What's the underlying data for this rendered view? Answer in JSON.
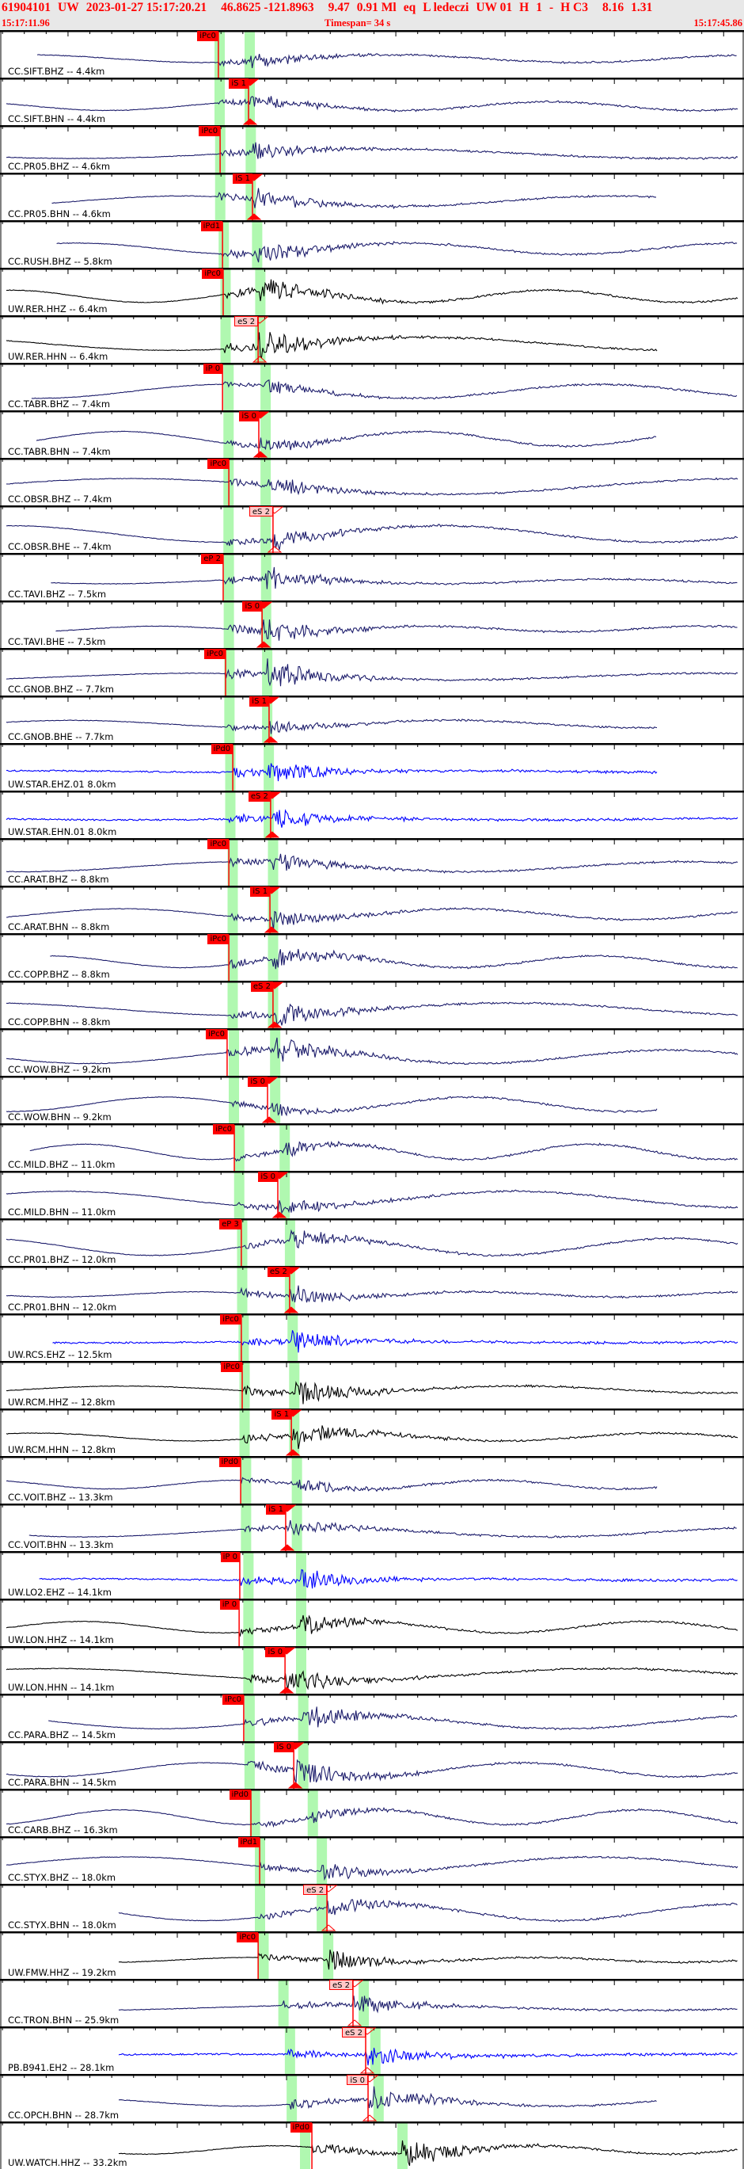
{
  "header": {
    "title_fields": [
      "61904101",
      "UW",
      "2023-01-27 15:17:20.21",
      "",
      "46.8625 -121.8963",
      "",
      "9.47",
      "0.91 Ml",
      "eq",
      "L ledeczi",
      "UW 01",
      "H",
      "1",
      "-",
      "H C3",
      "",
      "8.16",
      "1.31"
    ],
    "start_time": "15:17:11.96",
    "timespan": "Timespan=  34 s",
    "end_time": "15:17:45.86"
  },
  "colors": {
    "header_bg": "#e8e8e8",
    "header_text": "#ff0000",
    "trace_bh": "#1c1c6b",
    "trace_hh": "#000000",
    "trace_eh": "#0000ff",
    "pick": "#ff0000",
    "pick_weak_bg": "#ffc8c8",
    "window": "#b0f8b0"
  },
  "traces": [
    {
      "label": "CC.SIFT.BHZ -- 4.4km",
      "dist": 4.4,
      "pick": {
        "label": "iPc0",
        "time": "15:17:21.88",
        "weak": false
      }
    },
    {
      "label": "CC.SIFT.BHN -- 4.4km",
      "dist": 4.4,
      "pick": {
        "label": "iS 1",
        "time": "15:17:23.26",
        "weak": false
      }
    },
    {
      "label": "CC.PR05.BHZ -- 4.6km",
      "dist": 4.6,
      "pick": {
        "label": "iPc0",
        "time": "15:17:21.96",
        "weak": false
      }
    },
    {
      "label": "CC.PR05.BHN -- 4.6km",
      "dist": 4.6,
      "pick": {
        "label": "iS 1",
        "time": "15:17:23.44",
        "weak": false
      }
    },
    {
      "label": "CC.RUSH.BHZ -- 5.8km",
      "dist": 5.8,
      "pick": {
        "label": "iPd1",
        "time": "15:17:22.07",
        "weak": false
      }
    },
    {
      "label": "UW.RER.HHZ -- 6.4km",
      "dist": 6.4,
      "pick": {
        "label": "iPc0",
        "time": "15:17:22.10",
        "weak": false
      }
    },
    {
      "label": "UW.RER.HHN -- 6.4km",
      "dist": 6.4,
      "pick": {
        "label": "eS 2",
        "time": "15:17:23.70",
        "weak": true
      }
    },
    {
      "label": "CC.TABR.BHZ -- 7.4km",
      "dist": 7.4,
      "pick": {
        "label": "iP 0",
        "time": "15:17:22.07",
        "weak": false
      }
    },
    {
      "label": "CC.TABR.BHN -- 7.4km",
      "dist": 7.4,
      "pick": {
        "label": "iS 0",
        "time": "15:17:23.73",
        "weak": false
      }
    },
    {
      "label": "CC.OBSR.BHZ -- 7.4km",
      "dist": 7.4,
      "pick": {
        "label": "iPc0",
        "time": "15:17:22.36",
        "weak": false
      }
    },
    {
      "label": "CC.OBSR.BHE -- 7.4km",
      "dist": 7.4,
      "pick": {
        "label": "eS 2",
        "time": "15:17:24.38",
        "weak": true
      }
    },
    {
      "label": "CC.TAVI.BHZ -- 7.5km",
      "dist": 7.5,
      "pick": {
        "label": "eP 2",
        "time": "15:17:22.10",
        "weak": false
      }
    },
    {
      "label": "CC.TAVI.BHE -- 7.5km",
      "dist": 7.5,
      "pick": {
        "label": "iS 0",
        "time": "15:17:23.88",
        "weak": false
      }
    },
    {
      "label": "CC.GNOB.BHZ -- 7.7km",
      "dist": 7.7,
      "pick": {
        "label": "iPc0",
        "time": "15:17:22.21",
        "weak": false
      }
    },
    {
      "label": "CC.GNOB.BHE -- 7.7km",
      "dist": 7.7,
      "pick": {
        "label": "iS 1",
        "time": "15:17:24.20",
        "weak": false
      }
    },
    {
      "label": "UW.STAR.EHZ.01 8.0km",
      "dist": 8.0,
      "pick": {
        "label": "iPd0",
        "time": "15:17:22.54",
        "weak": false
      }
    },
    {
      "label": "UW.STAR.EHN.01 8.0km",
      "dist": 8.0,
      "pick": {
        "label": "eS 2",
        "time": "15:17:24.27",
        "weak": false
      }
    },
    {
      "label": "CC.ARAT.BHZ -- 8.8km",
      "dist": 8.8,
      "pick": {
        "label": "iPc0",
        "time": "15:17:22.36",
        "weak": false
      }
    },
    {
      "label": "CC.ARAT.BHN -- 8.8km",
      "dist": 8.8,
      "pick": {
        "label": "iS 1",
        "time": "15:17:24.24",
        "weak": false
      }
    },
    {
      "label": "CC.COPP.BHZ -- 8.8km",
      "dist": 8.8,
      "pick": {
        "label": "iPc0",
        "time": "15:17:22.36",
        "weak": false
      }
    },
    {
      "label": "CC.COPP.BHN -- 8.8km",
      "dist": 8.8,
      "pick": {
        "label": "eS 2",
        "time": "15:17:24.38",
        "weak": false
      }
    },
    {
      "label": "CC.WOW.BHZ -- 9.2km",
      "dist": 9.2,
      "pick": {
        "label": "iPc0",
        "time": "15:17:22.28",
        "weak": false
      }
    },
    {
      "label": "CC.WOW.BHN -- 9.2km",
      "dist": 9.2,
      "pick": {
        "label": "iS 0",
        "time": "15:17:24.13",
        "weak": false
      }
    },
    {
      "label": "CC.MILD.BHZ -- 11.0km",
      "dist": 11.0,
      "pick": {
        "label": "iPc0",
        "time": "15:17:22.61",
        "weak": false
      }
    },
    {
      "label": "CC.MILD.BHN -- 11.0km",
      "dist": 11.0,
      "pick": {
        "label": "iS 0",
        "time": "15:17:24.60",
        "weak": false
      }
    },
    {
      "label": "CC.PR01.BHZ -- 12.0km",
      "dist": 12.0,
      "pick": {
        "label": "eP 3",
        "time": "15:17:22.93",
        "weak": false
      }
    },
    {
      "label": "CC.PR01.BHN -- 12.0km",
      "dist": 12.0,
      "pick": {
        "label": "eS 2",
        "time": "15:17:25.14",
        "weak": false
      }
    },
    {
      "label": "UW.RCS.EHZ -- 12.5km",
      "dist": 12.5,
      "pick": {
        "label": "iPc0",
        "time": "15:17:22.93",
        "weak": false
      }
    },
    {
      "label": "UW.RCM.HHZ -- 12.8km",
      "dist": 12.8,
      "pick": {
        "label": "iPc0",
        "time": "15:17:22.97",
        "weak": false
      }
    },
    {
      "label": "UW.RCM.HHN -- 12.8km",
      "dist": 12.8,
      "pick": {
        "label": "iS 1",
        "time": "15:17:25.22",
        "weak": false
      }
    },
    {
      "label": "CC.VOIT.BHZ -- 13.3km",
      "dist": 13.3,
      "pick": {
        "label": "iPd0",
        "time": "15:17:22.90",
        "weak": false
      }
    },
    {
      "label": "CC.VOIT.BHN -- 13.3km",
      "dist": 13.3,
      "pick": {
        "label": "iS 1",
        "time": "15:17:24.96",
        "weak": false
      }
    },
    {
      "label": "UW.LO2.EHZ -- 14.1km",
      "dist": 14.1,
      "pick": {
        "label": "iP 0",
        "time": "15:17:22.86",
        "weak": false
      }
    },
    {
      "label": "UW.LON.HHZ -- 14.1km",
      "dist": 14.1,
      "pick": {
        "label": "iP 0",
        "time": "15:17:22.83",
        "weak": false
      }
    },
    {
      "label": "UW.LON.HHN -- 14.1km",
      "dist": 14.1,
      "pick": {
        "label": "iS 0",
        "time": "15:17:24.93",
        "weak": false
      }
    },
    {
      "label": "CC.PARA.BHZ -- 14.5km",
      "dist": 14.5,
      "pick": {
        "label": "iPc0",
        "time": "15:17:23.04",
        "weak": false
      }
    },
    {
      "label": "CC.PARA.BHN -- 14.5km",
      "dist": 14.5,
      "pick": {
        "label": "iS 0",
        "time": "15:17:25.33",
        "weak": false
      }
    },
    {
      "label": "CC.CARB.BHZ -- 16.3km",
      "dist": 16.3,
      "pick": {
        "label": "iPd0",
        "time": "15:17:23.37",
        "weak": false
      }
    },
    {
      "label": "CC.STYX.BHZ -- 18.0km",
      "dist": 18.0,
      "pick": {
        "label": "iPd1",
        "time": "15:17:23.77",
        "weak": false
      }
    },
    {
      "label": "CC.STYX.BHN -- 18.0km",
      "dist": 18.0,
      "pick": {
        "label": "eS 2",
        "time": "15:17:26.85",
        "weak": true
      }
    },
    {
      "label": "UW.FMW.HHZ -- 19.2km",
      "dist": 19.2,
      "pick": {
        "label": "iPc0",
        "time": "15:17:23.70",
        "weak": false
      }
    },
    {
      "label": "CC.TRON.BHN -- 25.9km",
      "dist": 25.9,
      "pick": {
        "label": "eS 2",
        "time": "15:17:28.04",
        "weak": true
      }
    },
    {
      "label": "PB.B941.EH2 -- 28.1km",
      "dist": 28.1,
      "pick": {
        "label": "eS 2",
        "time": "15:17:28.62",
        "weak": true
      }
    },
    {
      "label": "CC.OPCH.BHN -- 28.7km",
      "dist": 28.7,
      "pick": {
        "label": "iS 0",
        "time": "15:17:28.73",
        "weak": true
      }
    },
    {
      "label": "UW.WATCH.HHZ -- 33.2km",
      "dist": 33.2,
      "pick": {
        "label": "iPd0",
        "time": "15:17:26.16",
        "weak": false
      }
    }
  ]
}
